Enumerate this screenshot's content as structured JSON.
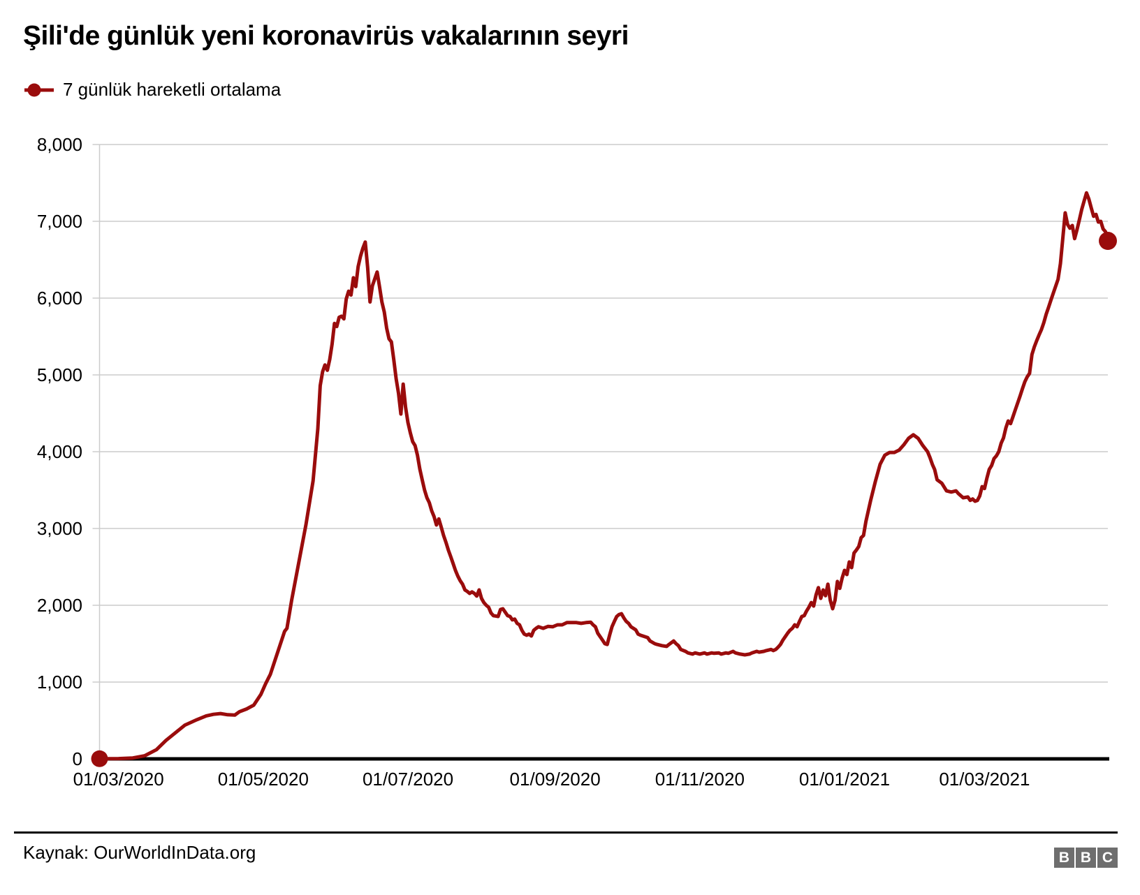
{
  "header": {
    "title": "Şili'de günlük yeni koronavirüs vakalarının seyri",
    "legend_label": "7 günlük hareketli ortalama"
  },
  "footer": {
    "source": "Kaynak: OurWorldInData.org",
    "logo_letters": [
      "B",
      "B",
      "C"
    ]
  },
  "colors": {
    "line": "#9a0c0c",
    "grid": "#cccccc",
    "zero_axis": "#000000",
    "text": "#000000",
    "logo_bg": "#6e6e6e",
    "logo_text": "#ffffff"
  },
  "chart_data": {
    "type": "line",
    "title": "Şili'de günlük yeni koronavirüs vakalarının seyri",
    "series_name": "7 günlük hareketli ortalama",
    "legend_position": "top-left",
    "grid": true,
    "x_axis_type": "date",
    "x_start": "2020-02-22",
    "x_end": "2021-04-22",
    "ylim": [
      0,
      8000
    ],
    "y_ticks": [
      {
        "value": 0,
        "label": "0"
      },
      {
        "value": 1000,
        "label": "1,000"
      },
      {
        "value": 2000,
        "label": "2,000"
      },
      {
        "value": 3000,
        "label": "3,000"
      },
      {
        "value": 4000,
        "label": "4,000"
      },
      {
        "value": 5000,
        "label": "5,000"
      },
      {
        "value": 6000,
        "label": "6,000"
      },
      {
        "value": 7000,
        "label": "7,000"
      },
      {
        "value": 8000,
        "label": "8,000"
      }
    ],
    "x_ticks": [
      {
        "date": "2020-03-01",
        "label": "01/03/2020"
      },
      {
        "date": "2020-05-01",
        "label": "01/05/2020"
      },
      {
        "date": "2020-07-01",
        "label": "01/07/2020"
      },
      {
        "date": "2020-09-01",
        "label": "01/09/2020"
      },
      {
        "date": "2020-11-01",
        "label": "01/11/2020"
      },
      {
        "date": "2021-01-01",
        "label": "01/01/2021"
      },
      {
        "date": "2021-03-01",
        "label": "01/03/2021"
      }
    ],
    "markers": {
      "start_dot": true,
      "end_dot": true
    },
    "points": [
      [
        "2020-02-22",
        2
      ],
      [
        "2020-03-01",
        4
      ],
      [
        "2020-03-07",
        12
      ],
      [
        "2020-03-12",
        40
      ],
      [
        "2020-03-17",
        120
      ],
      [
        "2020-03-21",
        240
      ],
      [
        "2020-03-25",
        340
      ],
      [
        "2020-03-29",
        440
      ],
      [
        "2020-04-03",
        510
      ],
      [
        "2020-04-07",
        560
      ],
      [
        "2020-04-10",
        580
      ],
      [
        "2020-04-13",
        590
      ],
      [
        "2020-04-16",
        575
      ],
      [
        "2020-04-19",
        570
      ],
      [
        "2020-04-21",
        615
      ],
      [
        "2020-04-24",
        650
      ],
      [
        "2020-04-27",
        700
      ],
      [
        "2020-04-30",
        840
      ],
      [
        "2020-05-02",
        980
      ],
      [
        "2020-05-04",
        1100
      ],
      [
        "2020-05-07",
        1380
      ],
      [
        "2020-05-10",
        1660
      ],
      [
        "2020-05-11",
        1700
      ],
      [
        "2020-05-13",
        2070
      ],
      [
        "2020-05-16",
        2560
      ],
      [
        "2020-05-19",
        3050
      ],
      [
        "2020-05-22",
        3620
      ],
      [
        "2020-05-24",
        4300
      ],
      [
        "2020-05-25",
        4860
      ],
      [
        "2020-05-26",
        5040
      ],
      [
        "2020-05-27",
        5130
      ],
      [
        "2020-05-28",
        5060
      ],
      [
        "2020-05-29",
        5200
      ],
      [
        "2020-05-30",
        5400
      ],
      [
        "2020-05-31",
        5670
      ],
      [
        "2020-06-01",
        5630
      ],
      [
        "2020-06-02",
        5750
      ],
      [
        "2020-06-03",
        5765
      ],
      [
        "2020-06-04",
        5730
      ],
      [
        "2020-06-05",
        5990
      ],
      [
        "2020-06-06",
        6090
      ],
      [
        "2020-06-07",
        6040
      ],
      [
        "2020-06-08",
        6265
      ],
      [
        "2020-06-09",
        6150
      ],
      [
        "2020-06-10",
        6410
      ],
      [
        "2020-06-11",
        6545
      ],
      [
        "2020-06-12",
        6650
      ],
      [
        "2020-06-13",
        6730
      ],
      [
        "2020-06-14",
        6400
      ],
      [
        "2020-06-15",
        5950
      ],
      [
        "2020-06-16",
        6160
      ],
      [
        "2020-06-17",
        6250
      ],
      [
        "2020-06-18",
        6340
      ],
      [
        "2020-06-19",
        6150
      ],
      [
        "2020-06-20",
        5950
      ],
      [
        "2020-06-21",
        5820
      ],
      [
        "2020-06-22",
        5610
      ],
      [
        "2020-06-23",
        5470
      ],
      [
        "2020-06-24",
        5430
      ],
      [
        "2020-06-25",
        5200
      ],
      [
        "2020-06-26",
        4950
      ],
      [
        "2020-06-27",
        4760
      ],
      [
        "2020-06-28",
        4490
      ],
      [
        "2020-06-29",
        4880
      ],
      [
        "2020-06-30",
        4580
      ],
      [
        "2020-07-01",
        4380
      ],
      [
        "2020-07-02",
        4245
      ],
      [
        "2020-07-03",
        4130
      ],
      [
        "2020-07-04",
        4080
      ],
      [
        "2020-07-05",
        3955
      ],
      [
        "2020-07-06",
        3775
      ],
      [
        "2020-07-07",
        3635
      ],
      [
        "2020-07-08",
        3500
      ],
      [
        "2020-07-09",
        3400
      ],
      [
        "2020-07-10",
        3335
      ],
      [
        "2020-07-11",
        3230
      ],
      [
        "2020-07-12",
        3155
      ],
      [
        "2020-07-13",
        3045
      ],
      [
        "2020-07-14",
        3125
      ],
      [
        "2020-07-15",
        3020
      ],
      [
        "2020-07-16",
        2910
      ],
      [
        "2020-07-17",
        2820
      ],
      [
        "2020-07-18",
        2720
      ],
      [
        "2020-07-19",
        2635
      ],
      [
        "2020-07-20",
        2545
      ],
      [
        "2020-07-21",
        2455
      ],
      [
        "2020-07-22",
        2380
      ],
      [
        "2020-07-23",
        2320
      ],
      [
        "2020-07-24",
        2275
      ],
      [
        "2020-07-25",
        2200
      ],
      [
        "2020-07-26",
        2180
      ],
      [
        "2020-07-27",
        2155
      ],
      [
        "2020-07-28",
        2175
      ],
      [
        "2020-07-29",
        2155
      ],
      [
        "2020-07-30",
        2120
      ],
      [
        "2020-07-31",
        2200
      ],
      [
        "2020-08-01",
        2090
      ],
      [
        "2020-08-02",
        2035
      ],
      [
        "2020-08-03",
        2000
      ],
      [
        "2020-08-04",
        1975
      ],
      [
        "2020-08-05",
        1900
      ],
      [
        "2020-08-06",
        1865
      ],
      [
        "2020-08-07",
        1860
      ],
      [
        "2020-08-08",
        1855
      ],
      [
        "2020-08-09",
        1945
      ],
      [
        "2020-08-10",
        1955
      ],
      [
        "2020-08-11",
        1910
      ],
      [
        "2020-08-12",
        1865
      ],
      [
        "2020-08-13",
        1855
      ],
      [
        "2020-08-14",
        1810
      ],
      [
        "2020-08-15",
        1820
      ],
      [
        "2020-08-16",
        1765
      ],
      [
        "2020-08-17",
        1745
      ],
      [
        "2020-08-18",
        1675
      ],
      [
        "2020-08-19",
        1625
      ],
      [
        "2020-08-20",
        1610
      ],
      [
        "2020-08-21",
        1625
      ],
      [
        "2020-08-22",
        1600
      ],
      [
        "2020-08-23",
        1675
      ],
      [
        "2020-08-24",
        1700
      ],
      [
        "2020-08-25",
        1720
      ],
      [
        "2020-08-27",
        1700
      ],
      [
        "2020-08-29",
        1725
      ],
      [
        "2020-08-31",
        1720
      ],
      [
        "2020-09-02",
        1745
      ],
      [
        "2020-09-04",
        1745
      ],
      [
        "2020-09-06",
        1775
      ],
      [
        "2020-09-08",
        1775
      ],
      [
        "2020-09-10",
        1775
      ],
      [
        "2020-09-12",
        1765
      ],
      [
        "2020-09-14",
        1775
      ],
      [
        "2020-09-16",
        1780
      ],
      [
        "2020-09-17",
        1745
      ],
      [
        "2020-09-18",
        1720
      ],
      [
        "2020-09-19",
        1635
      ],
      [
        "2020-09-21",
        1545
      ],
      [
        "2020-09-22",
        1500
      ],
      [
        "2020-09-23",
        1490
      ],
      [
        "2020-09-24",
        1610
      ],
      [
        "2020-09-25",
        1720
      ],
      [
        "2020-09-26",
        1790
      ],
      [
        "2020-09-27",
        1855
      ],
      [
        "2020-09-28",
        1880
      ],
      [
        "2020-09-29",
        1890
      ],
      [
        "2020-09-30",
        1835
      ],
      [
        "2020-10-01",
        1790
      ],
      [
        "2020-10-02",
        1765
      ],
      [
        "2020-10-03",
        1720
      ],
      [
        "2020-10-04",
        1700
      ],
      [
        "2020-10-05",
        1680
      ],
      [
        "2020-10-06",
        1625
      ],
      [
        "2020-10-07",
        1610
      ],
      [
        "2020-10-08",
        1600
      ],
      [
        "2020-10-10",
        1580
      ],
      [
        "2020-10-11",
        1535
      ],
      [
        "2020-10-13",
        1500
      ],
      [
        "2020-10-14",
        1490
      ],
      [
        "2020-10-16",
        1475
      ],
      [
        "2020-10-18",
        1465
      ],
      [
        "2020-10-19",
        1490
      ],
      [
        "2020-10-21",
        1535
      ],
      [
        "2020-10-22",
        1500
      ],
      [
        "2020-10-23",
        1475
      ],
      [
        "2020-10-24",
        1425
      ],
      [
        "2020-10-26",
        1400
      ],
      [
        "2020-10-27",
        1380
      ],
      [
        "2020-10-29",
        1365
      ],
      [
        "2020-10-30",
        1380
      ],
      [
        "2020-11-01",
        1365
      ],
      [
        "2020-11-03",
        1380
      ],
      [
        "2020-11-04",
        1365
      ],
      [
        "2020-11-06",
        1380
      ],
      [
        "2020-11-07",
        1375
      ],
      [
        "2020-11-09",
        1380
      ],
      [
        "2020-11-10",
        1365
      ],
      [
        "2020-11-12",
        1380
      ],
      [
        "2020-11-13",
        1375
      ],
      [
        "2020-11-15",
        1400
      ],
      [
        "2020-11-16",
        1380
      ],
      [
        "2020-11-18",
        1365
      ],
      [
        "2020-11-20",
        1355
      ],
      [
        "2020-11-22",
        1365
      ],
      [
        "2020-11-23",
        1380
      ],
      [
        "2020-11-25",
        1400
      ],
      [
        "2020-11-26",
        1390
      ],
      [
        "2020-11-28",
        1400
      ],
      [
        "2020-11-29",
        1410
      ],
      [
        "2020-12-01",
        1425
      ],
      [
        "2020-12-02",
        1410
      ],
      [
        "2020-12-03",
        1425
      ],
      [
        "2020-12-04",
        1455
      ],
      [
        "2020-12-05",
        1490
      ],
      [
        "2020-12-06",
        1545
      ],
      [
        "2020-12-07",
        1590
      ],
      [
        "2020-12-08",
        1635
      ],
      [
        "2020-12-09",
        1675
      ],
      [
        "2020-12-10",
        1700
      ],
      [
        "2020-12-11",
        1745
      ],
      [
        "2020-12-12",
        1720
      ],
      [
        "2020-12-13",
        1790
      ],
      [
        "2020-12-14",
        1855
      ],
      [
        "2020-12-15",
        1865
      ],
      [
        "2020-12-16",
        1925
      ],
      [
        "2020-12-17",
        1975
      ],
      [
        "2020-12-18",
        2035
      ],
      [
        "2020-12-19",
        1990
      ],
      [
        "2020-12-20",
        2135
      ],
      [
        "2020-12-21",
        2230
      ],
      [
        "2020-12-22",
        2090
      ],
      [
        "2020-12-23",
        2200
      ],
      [
        "2020-12-24",
        2125
      ],
      [
        "2020-12-25",
        2275
      ],
      [
        "2020-12-26",
        2065
      ],
      [
        "2020-12-27",
        1955
      ],
      [
        "2020-12-28",
        2065
      ],
      [
        "2020-12-29",
        2310
      ],
      [
        "2020-12-30",
        2220
      ],
      [
        "2020-12-31",
        2355
      ],
      [
        "2021-01-01",
        2455
      ],
      [
        "2021-01-02",
        2400
      ],
      [
        "2021-01-03",
        2565
      ],
      [
        "2021-01-04",
        2490
      ],
      [
        "2021-01-05",
        2680
      ],
      [
        "2021-01-06",
        2720
      ],
      [
        "2021-01-07",
        2765
      ],
      [
        "2021-01-08",
        2880
      ],
      [
        "2021-01-09",
        2910
      ],
      [
        "2021-01-10",
        3090
      ],
      [
        "2021-01-12",
        3365
      ],
      [
        "2021-01-14",
        3610
      ],
      [
        "2021-01-16",
        3835
      ],
      [
        "2021-01-18",
        3955
      ],
      [
        "2021-01-20",
        3990
      ],
      [
        "2021-01-22",
        3990
      ],
      [
        "2021-01-24",
        4020
      ],
      [
        "2021-01-26",
        4090
      ],
      [
        "2021-01-28",
        4175
      ],
      [
        "2021-01-30",
        4220
      ],
      [
        "2021-02-01",
        4175
      ],
      [
        "2021-02-03",
        4080
      ],
      [
        "2021-02-05",
        4000
      ],
      [
        "2021-02-06",
        3925
      ],
      [
        "2021-02-07",
        3835
      ],
      [
        "2021-02-08",
        3765
      ],
      [
        "2021-02-09",
        3635
      ],
      [
        "2021-02-11",
        3590
      ],
      [
        "2021-02-13",
        3490
      ],
      [
        "2021-02-15",
        3475
      ],
      [
        "2021-02-17",
        3490
      ],
      [
        "2021-02-18",
        3455
      ],
      [
        "2021-02-20",
        3400
      ],
      [
        "2021-02-22",
        3410
      ],
      [
        "2021-02-23",
        3365
      ],
      [
        "2021-02-24",
        3385
      ],
      [
        "2021-02-25",
        3355
      ],
      [
        "2021-02-26",
        3365
      ],
      [
        "2021-02-27",
        3425
      ],
      [
        "2021-02-28",
        3545
      ],
      [
        "2021-03-01",
        3520
      ],
      [
        "2021-03-02",
        3655
      ],
      [
        "2021-03-03",
        3770
      ],
      [
        "2021-03-04",
        3820
      ],
      [
        "2021-03-05",
        3910
      ],
      [
        "2021-03-06",
        3945
      ],
      [
        "2021-03-07",
        4000
      ],
      [
        "2021-03-08",
        4110
      ],
      [
        "2021-03-09",
        4180
      ],
      [
        "2021-03-10",
        4310
      ],
      [
        "2021-03-11",
        4400
      ],
      [
        "2021-03-12",
        4365
      ],
      [
        "2021-03-13",
        4455
      ],
      [
        "2021-03-14",
        4545
      ],
      [
        "2021-03-15",
        4635
      ],
      [
        "2021-03-16",
        4725
      ],
      [
        "2021-03-17",
        4820
      ],
      [
        "2021-03-18",
        4910
      ],
      [
        "2021-03-19",
        4975
      ],
      [
        "2021-03-20",
        5020
      ],
      [
        "2021-03-21",
        5265
      ],
      [
        "2021-03-22",
        5365
      ],
      [
        "2021-03-23",
        5445
      ],
      [
        "2021-03-24",
        5520
      ],
      [
        "2021-03-25",
        5590
      ],
      [
        "2021-03-26",
        5680
      ],
      [
        "2021-03-27",
        5790
      ],
      [
        "2021-03-28",
        5880
      ],
      [
        "2021-03-29",
        5975
      ],
      [
        "2021-03-30",
        6065
      ],
      [
        "2021-03-31",
        6155
      ],
      [
        "2021-04-01",
        6245
      ],
      [
        "2021-04-02",
        6450
      ],
      [
        "2021-04-03",
        6780
      ],
      [
        "2021-04-04",
        7110
      ],
      [
        "2021-04-05",
        6960
      ],
      [
        "2021-04-06",
        6910
      ],
      [
        "2021-04-07",
        6945
      ],
      [
        "2021-04-08",
        6775
      ],
      [
        "2021-04-09",
        6890
      ],
      [
        "2021-04-10",
        7020
      ],
      [
        "2021-04-11",
        7155
      ],
      [
        "2021-04-12",
        7265
      ],
      [
        "2021-04-13",
        7370
      ],
      [
        "2021-04-14",
        7290
      ],
      [
        "2021-04-15",
        7175
      ],
      [
        "2021-04-16",
        7065
      ],
      [
        "2021-04-17",
        7090
      ],
      [
        "2021-04-18",
        6990
      ],
      [
        "2021-04-19",
        7000
      ],
      [
        "2021-04-20",
        6900
      ],
      [
        "2021-04-21",
        6865
      ],
      [
        "2021-04-22",
        6745
      ]
    ]
  }
}
